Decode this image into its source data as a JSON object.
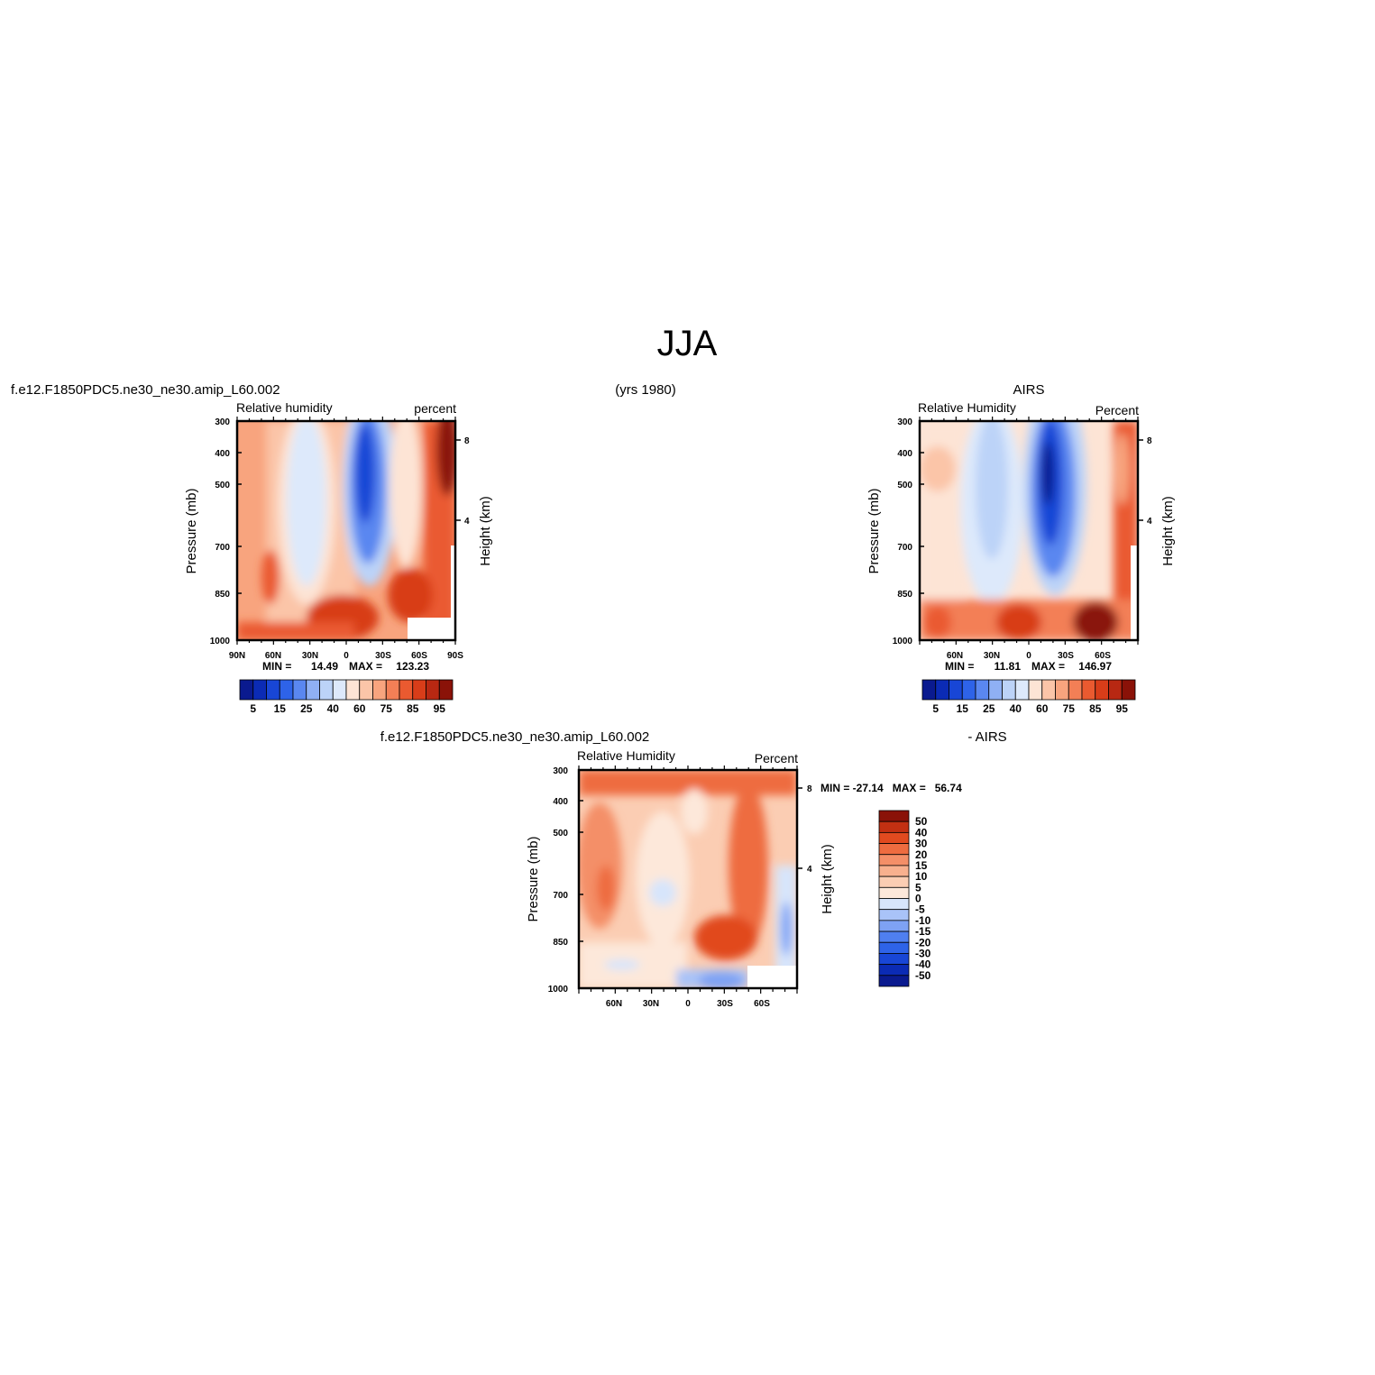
{
  "figure": {
    "title": "JJA",
    "years": "(yrs 1980)"
  },
  "colors": {
    "abs_levels": [
      "#0a1a8f",
      "#0b2bb5",
      "#1846d6",
      "#2e63e8",
      "#5a87f0",
      "#8fb0f4",
      "#bcd3f8",
      "#dde9fb",
      "#fde4d5",
      "#fbc5a8",
      "#f8a47e",
      "#f37f56",
      "#ea5a30",
      "#d83d19",
      "#b82812",
      "#8a1208"
    ],
    "diff_levels": [
      "#0a1a8f",
      "#0b2bb5",
      "#1846d6",
      "#2e63e8",
      "#4f7ff0",
      "#7ea2f4",
      "#a9c3f8",
      "#d7e5fb",
      "#fde8da",
      "#fbcdb3",
      "#f8b08e",
      "#f48f68",
      "#ee6c40",
      "#e14a1f",
      "#c23012",
      "#8a1208"
    ]
  },
  "chart_data": [
    {
      "type": "heatmap",
      "case": "f.e12.F1850PDC5.ne30_ne30.amip_L60.002",
      "title": "Relative humidity",
      "units": "percent",
      "ylabel": "Pressure (mb)",
      "ylabel_right": "Height (km)",
      "x_ticks": [
        "90N",
        "60N",
        "30N",
        "0",
        "30S",
        "60S",
        "90S"
      ],
      "y_ticks": [
        "300",
        "400",
        "500",
        "700",
        "850",
        "1000"
      ],
      "right_ticks": [
        "8",
        "4"
      ],
      "ylim": [
        1000,
        300
      ],
      "min_label": "MIN =",
      "min_value": "14.49",
      "max_label": "MAX =",
      "max_value": "123.23",
      "min": 14.49,
      "max": 123.23,
      "colorbar": [
        "5",
        "15",
        "25",
        "40",
        "60",
        "75",
        "85",
        "95"
      ]
    },
    {
      "type": "heatmap",
      "case": "AIRS",
      "title": "Relative Humidity",
      "units": "Percent",
      "ylabel": "Pressure (mb)",
      "ylabel_right": "Height (km)",
      "x_ticks": [
        "60N",
        "30N",
        "0",
        "30S",
        "60S"
      ],
      "y_ticks": [
        "300",
        "400",
        "500",
        "700",
        "850",
        "1000"
      ],
      "right_ticks": [
        "8",
        "4"
      ],
      "ylim": [
        1000,
        300
      ],
      "min_label": "MIN =",
      "min_value": "11.81",
      "max_label": "MAX =",
      "max_value": "146.97",
      "min": 11.81,
      "max": 146.97,
      "colorbar": [
        "5",
        "15",
        "25",
        "40",
        "60",
        "75",
        "85",
        "95"
      ]
    },
    {
      "type": "heatmap",
      "case": "f.e12.F1850PDC5.ne30_ne30.amip_L60.002",
      "case_right": "- AIRS",
      "title": "Relative Humidity",
      "units": "Percent",
      "ylabel": "Pressure (mb)",
      "ylabel_right": "Height (km)",
      "x_ticks": [
        "60N",
        "30N",
        "0",
        "30S",
        "60S"
      ],
      "y_ticks": [
        "300",
        "400",
        "500",
        "700",
        "850",
        "1000"
      ],
      "right_ticks": [
        "8",
        "4"
      ],
      "ylim": [
        1000,
        300
      ],
      "stats": "MIN = -27.14   MAX =   56.74",
      "min": -27.14,
      "max": 56.74,
      "colorbar": [
        "50",
        "40",
        "30",
        "20",
        "15",
        "10",
        "5",
        "0",
        "-5",
        "-10",
        "-15",
        "-20",
        "-30",
        "-40",
        "-50"
      ]
    }
  ]
}
